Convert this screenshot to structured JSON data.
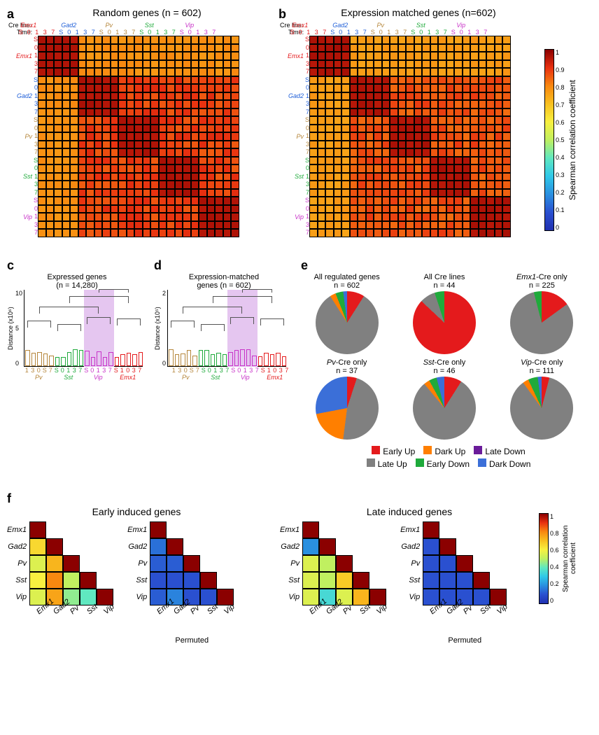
{
  "cre_lines": [
    "Emx1",
    "Gad2",
    "Pv",
    "Sst",
    "Vip"
  ],
  "cre_colors": {
    "Emx1": "#e41a1c",
    "Gad2": "#1f5fd8",
    "Pv": "#b5863b",
    "Sst": "#1faa3b",
    "Vip": "#c832c8"
  },
  "timepoints": [
    "S",
    "0",
    "1",
    "3",
    "7"
  ],
  "panel_a": {
    "label": "a",
    "title": "Random genes (n = 602)",
    "xlabel_cre": "Cre line:",
    "xlabel_time": "Time:",
    "block_high": 0.97,
    "block_low": 0.85,
    "emx1_off_diag": 0.8
  },
  "panel_b": {
    "label": "b",
    "title": "Expression matched genes (n=602)",
    "block_high": 0.97,
    "block_low": 0.83,
    "emx1_off_diag": 0.78
  },
  "colorbar_ab": {
    "label": "Spearman correlation coefficient",
    "ticks": [
      "0",
      "0.1",
      "0.2",
      "0.3",
      "0.4",
      "0.5",
      "0.6",
      "0.7",
      "0.8",
      "0.9",
      "1"
    ],
    "colors": [
      "#2030b0",
      "#2a50d0",
      "#2a90e0",
      "#30c8e8",
      "#60e8c0",
      "#c0f060",
      "#f8f040",
      "#f8c020",
      "#f88810",
      "#e83010",
      "#8b0000"
    ]
  },
  "panel_c": {
    "label": "c",
    "title_line1": "Expressed genes",
    "title_line2": "(n =  14,280)",
    "ylabel": "Distance (x10⁶)",
    "ymax": 10,
    "yticks": [
      "0",
      "5",
      "10"
    ],
    "leaf_order": [
      "1",
      "3",
      "0",
      "S",
      "7",
      "S",
      "0",
      "1",
      "3",
      "7",
      "S",
      "0",
      "1",
      "3",
      "7",
      "S",
      "1",
      "0",
      "3",
      "7"
    ],
    "leaf_cre": [
      "Pv",
      "Pv",
      "Pv",
      "Pv",
      "Pv",
      "Sst",
      "Sst",
      "Sst",
      "Sst",
      "Sst",
      "Vip",
      "Vip",
      "Vip",
      "Vip",
      "Vip",
      "Emx1",
      "Emx1",
      "Emx1",
      "Emx1",
      "Emx1"
    ],
    "cre_group_labels": [
      "Pv",
      "Sst",
      "Vip",
      "Emx1"
    ],
    "highlight_cre": "Vip",
    "highlight_color": "#e5c6f0"
  },
  "panel_d": {
    "label": "d",
    "title_line1": "Expression-matched",
    "title_line2": "genes (n = 602)",
    "ylabel": "Distance (x10⁵)",
    "yticks": [
      "0",
      "2"
    ],
    "leaf_order": [
      "1",
      "3",
      "0",
      "S",
      "7",
      "S",
      "0",
      "1",
      "3",
      "7",
      "S",
      "0",
      "1",
      "3",
      "7",
      "S",
      "1",
      "0",
      "3",
      "7"
    ],
    "leaf_cre": [
      "Pv",
      "Pv",
      "Pv",
      "Pv",
      "Pv",
      "Sst",
      "Sst",
      "Sst",
      "Sst",
      "Sst",
      "Vip",
      "Vip",
      "Vip",
      "Vip",
      "Vip",
      "Emx1",
      "Emx1",
      "Emx1",
      "Emx1",
      "Emx1"
    ],
    "cre_group_labels": [
      "Pv",
      "Sst",
      "Vip",
      "Emx1"
    ]
  },
  "panel_e": {
    "label": "e",
    "categories": [
      "Early Up",
      "Late Up",
      "Dark Up",
      "Early Down",
      "Late Down",
      "Dark Down"
    ],
    "category_colors": {
      "Early Up": "#e41a1c",
      "Late Up": "#808080",
      "Dark Up": "#ff7f00",
      "Early Down": "#1faa3b",
      "Late Down": "#6a1b9a",
      "Dark Down": "#3b6fd8"
    },
    "pies": [
      {
        "title": "All regulated genes",
        "n": "n = 602",
        "slices": {
          "Early Up": 9,
          "Late Up": 82,
          "Dark Up": 3,
          "Early Down": 4,
          "Late Down": 0,
          "Dark Down": 2
        }
      },
      {
        "title": "All Cre lines",
        "n": "n = 44",
        "slices": {
          "Early Up": 87,
          "Late Up": 8,
          "Dark Up": 0,
          "Early Down": 5,
          "Late Down": 0,
          "Dark Down": 0
        }
      },
      {
        "title": "Emx1-Cre only",
        "n": "n = 225",
        "slices": {
          "Early Up": 15,
          "Late Up": 81,
          "Dark Up": 0,
          "Early Down": 4,
          "Late Down": 0,
          "Dark Down": 0
        }
      },
      {
        "title": "Pv-Cre only",
        "n": "n = 37",
        "slices": {
          "Early Up": 5,
          "Late Up": 47,
          "Dark Up": 20,
          "Early Down": 0,
          "Late Down": 0,
          "Dark Down": 28
        }
      },
      {
        "title": "Sst-Cre only",
        "n": "n = 46",
        "slices": {
          "Early Up": 9,
          "Late Up": 80,
          "Dark Up": 3,
          "Early Down": 4,
          "Late Down": 0,
          "Dark Down": 4
        }
      },
      {
        "title": "Vip-Cre only",
        "n": "n = 111",
        "slices": {
          "Early Up": 4,
          "Late Up": 86,
          "Dark Up": 3,
          "Early Down": 5,
          "Late Down": 0,
          "Dark Down": 2
        }
      }
    ]
  },
  "panel_f": {
    "label": "f",
    "title_early": "Early induced genes",
    "title_late": "Late induced genes",
    "permuted_label": "Permuted",
    "cre_order": [
      "Emx1",
      "Gad2",
      "Pv",
      "Sst",
      "Vip"
    ],
    "early_observed": [
      [
        1.0
      ],
      [
        0.65,
        1.0
      ],
      [
        0.55,
        0.72,
        1.0
      ],
      [
        0.6,
        0.8,
        0.5,
        1.0
      ],
      [
        0.55,
        0.75,
        0.45,
        0.4,
        1.0
      ]
    ],
    "early_permuted": [
      [
        1.0
      ],
      [
        0.15,
        1.0
      ],
      [
        0.12,
        0.12,
        1.0
      ],
      [
        0.1,
        0.1,
        0.1,
        1.0
      ],
      [
        0.12,
        0.18,
        0.1,
        0.1,
        1.0
      ]
    ],
    "late_observed": [
      [
        1.0
      ],
      [
        0.2,
        1.0
      ],
      [
        0.55,
        0.5,
        1.0
      ],
      [
        0.55,
        0.5,
        0.68,
        1.0
      ],
      [
        0.55,
        0.35,
        0.55,
        0.72,
        1.0
      ]
    ],
    "late_permuted": [
      [
        1.0
      ],
      [
        0.1,
        1.0
      ],
      [
        0.1,
        0.1,
        1.0
      ],
      [
        0.1,
        0.1,
        0.1,
        1.0
      ],
      [
        0.1,
        0.1,
        0.1,
        0.1,
        1.0
      ]
    ]
  },
  "colorbar_f": {
    "label": "Spearman correlation coefficient",
    "ticks": [
      "0",
      "0.2",
      "0.4",
      "0.6",
      "0.8",
      "1"
    ]
  }
}
